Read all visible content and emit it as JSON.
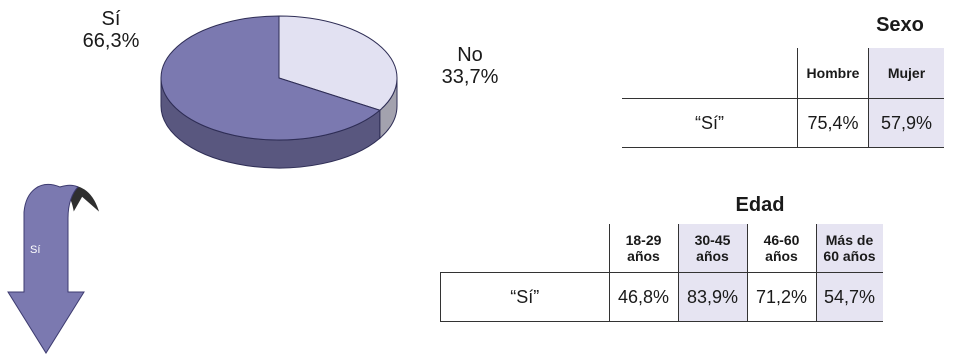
{
  "chart_data": [
    {
      "type": "pie",
      "categories": [
        "Sí",
        "No"
      ],
      "values": [
        66.3,
        33.7
      ],
      "value_labels": [
        "66,3%",
        "33,7%"
      ],
      "colors": [
        "#7b79b0",
        "#e2e1f2"
      ]
    },
    {
      "type": "table",
      "title": "Sexo",
      "columns": [
        "Hombre",
        "Mujer"
      ],
      "row_label": "“Sí”",
      "values": [
        "75,4%",
        "57,9%"
      ],
      "shaded": [
        false,
        true
      ]
    },
    {
      "type": "table",
      "title": "Edad",
      "columns": [
        "18-29\naños",
        "30-45\naños",
        "46-60\naños",
        "Más de\n60 años"
      ],
      "row_label": "“Sí”",
      "values": [
        "46,8%",
        "83,9%",
        "71,2%",
        "54,7%"
      ],
      "shaded": [
        false,
        true,
        false,
        true
      ]
    }
  ],
  "arrow": {
    "label": "Sí",
    "color": "#7b79b0"
  },
  "colors": {
    "shade": "#e6e4f2",
    "border": "#333333"
  }
}
